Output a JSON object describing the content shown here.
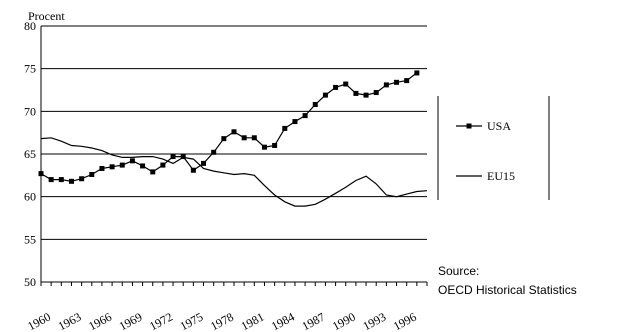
{
  "chart_data": {
    "type": "line",
    "ylabel": "Procent",
    "ylim": [
      50,
      80
    ],
    "yticks": [
      50,
      55,
      60,
      65,
      70,
      75,
      80
    ],
    "grid": "horizontal",
    "xlim": [
      1960,
      1998
    ],
    "xtick_labels": [
      "1960",
      "1963",
      "1966",
      "1969",
      "1972",
      "1975",
      "1978",
      "1981",
      "1984",
      "1987",
      "1990",
      "1993",
      "1996"
    ],
    "x": [
      1960,
      1961,
      1962,
      1963,
      1964,
      1965,
      1966,
      1967,
      1968,
      1969,
      1970,
      1971,
      1972,
      1973,
      1974,
      1975,
      1976,
      1977,
      1978,
      1979,
      1980,
      1981,
      1982,
      1983,
      1984,
      1985,
      1986,
      1987,
      1988,
      1989,
      1990,
      1991,
      1992,
      1993,
      1994,
      1995,
      1996,
      1997,
      1998
    ],
    "series": [
      {
        "name": "USA",
        "color": "#000000",
        "marker": "square",
        "values": [
          62.7,
          62.0,
          62.0,
          61.8,
          62.1,
          62.6,
          63.3,
          63.5,
          63.7,
          64.2,
          63.6,
          62.9,
          63.7,
          64.7,
          64.7,
          63.1,
          63.9,
          65.2,
          66.8,
          67.6,
          66.9,
          66.9,
          65.8,
          66.0,
          68.0,
          68.8,
          69.5,
          70.8,
          71.9,
          72.8,
          73.2,
          72.1,
          71.9,
          72.2,
          73.1,
          73.4,
          73.6,
          74.5,
          null
        ]
      },
      {
        "name": "EU15",
        "color": "#000000",
        "marker": "none",
        "values": [
          66.8,
          66.9,
          66.5,
          66.0,
          65.9,
          65.7,
          65.4,
          64.9,
          64.6,
          64.6,
          64.7,
          64.7,
          64.4,
          63.9,
          64.6,
          64.4,
          63.3,
          63.0,
          62.8,
          62.6,
          62.7,
          62.5,
          61.3,
          60.2,
          59.4,
          58.9,
          58.9,
          59.1,
          59.7,
          60.4,
          61.1,
          61.9,
          62.4,
          61.5,
          60.2,
          60.0,
          60.3,
          60.6,
          60.7
        ]
      }
    ],
    "legend": {
      "placement": "right"
    }
  },
  "source": {
    "label": "Source:",
    "text": "OECD Historical Statistics"
  }
}
